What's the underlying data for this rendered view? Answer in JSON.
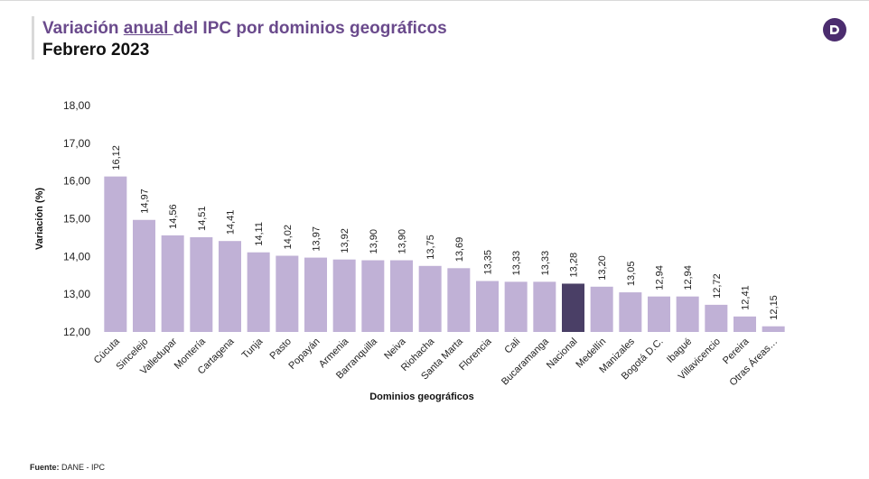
{
  "header": {
    "title_prefix": "Variación ",
    "title_underlined": "anual ",
    "title_suffix": "del IPC por dominios geográficos",
    "subtitle": "Febrero 2023",
    "logo_icon": "dane-logo-icon"
  },
  "footer": {
    "source_label": "Fuente:",
    "source_value": " DANE - IPC"
  },
  "colors": {
    "title": "#6a4a8c",
    "bar": "#c0b1d6",
    "bar_highlight": "#4a3f66",
    "logo": "#4b2c6e"
  },
  "chart_data": {
    "type": "bar",
    "xlabel": "Dominios geográficos",
    "ylabel": "Variación (%)",
    "ylim": [
      12,
      18
    ],
    "yticks": [
      "12,00",
      "13,00",
      "14,00",
      "15,00",
      "16,00",
      "17,00",
      "18,00"
    ],
    "grid": false,
    "highlight_category": "Nacional",
    "categories": [
      "Cúcuta",
      "Sincelejo",
      "Valledupar",
      "Montería",
      "Cartagena",
      "Tunja",
      "Pasto",
      "Popayán",
      "Armenia",
      "Barranquilla",
      "Neiva",
      "Riohacha",
      "Santa Marta",
      "Florencia",
      "Cali",
      "Bucaramanga",
      "Nacional",
      "Medellín",
      "Manizales",
      "Bogotá D.C.",
      "Ibagué",
      "Villavicencio",
      "Pereira",
      "Otras Áreas…"
    ],
    "values": [
      16.12,
      14.97,
      14.56,
      14.51,
      14.41,
      14.11,
      14.02,
      13.97,
      13.92,
      13.9,
      13.9,
      13.75,
      13.69,
      13.35,
      13.33,
      13.33,
      13.28,
      13.2,
      13.05,
      12.94,
      12.94,
      12.72,
      12.41,
      12.15
    ],
    "value_labels": [
      "16,12",
      "14,97",
      "14,56",
      "14,51",
      "14,41",
      "14,11",
      "14,02",
      "13,97",
      "13,92",
      "13,90",
      "13,90",
      "13,75",
      "13,69",
      "13,35",
      "13,33",
      "13,33",
      "13,28",
      "13,20",
      "13,05",
      "12,94",
      "12,94",
      "12,72",
      "12,41",
      "12,15"
    ]
  }
}
